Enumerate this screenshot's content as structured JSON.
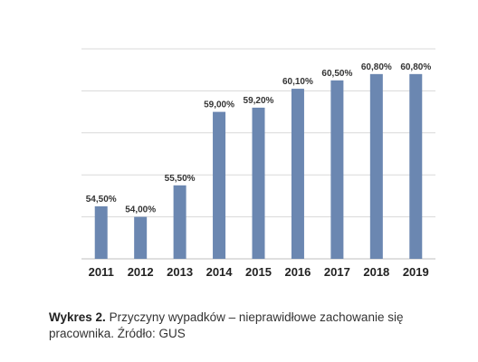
{
  "chart_data": {
    "type": "bar",
    "categories": [
      "2011",
      "2012",
      "2013",
      "2014",
      "2015",
      "2016",
      "2017",
      "2018",
      "2019"
    ],
    "values": [
      54.5,
      54.0,
      55.5,
      59.0,
      59.2,
      60.1,
      60.5,
      60.8,
      60.8
    ],
    "data_labels": [
      "54,50%",
      "54,00%",
      "55,50%",
      "59,00%",
      "59,20%",
      "60,10%",
      "60,50%",
      "60,80%",
      "60,80%"
    ],
    "ylim": [
      52.0,
      62.0
    ],
    "grid": true,
    "bar_color": "#6b87b1",
    "grid_color": "#d9d9d9",
    "axis_color": "#bfbfbf"
  },
  "caption": {
    "label": "Wykres 2.",
    "text": "Przyczyny wypadków – nieprawidłowe zachowanie się pracownika. Źródło: GUS"
  }
}
